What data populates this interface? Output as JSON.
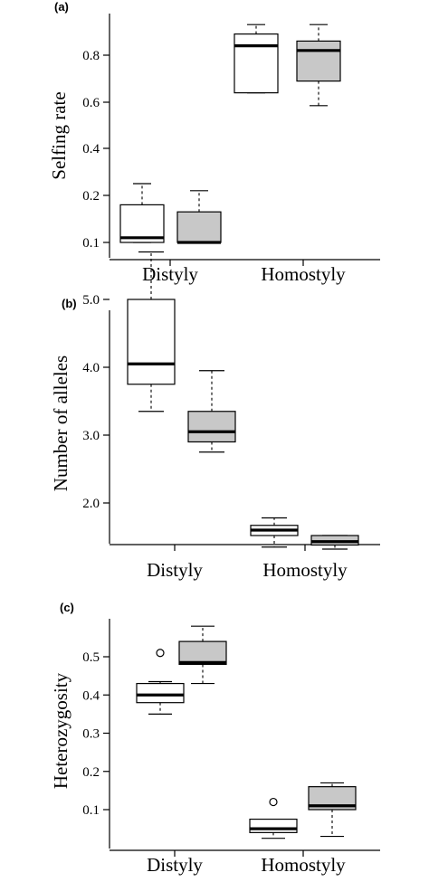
{
  "colors": {
    "white_box": "#ffffff",
    "grey_box": "#c8c8c8",
    "ink": "#000000"
  },
  "chart_data": [
    {
      "type": "box",
      "panel": "(a)",
      "ylabel": "Selfing rate",
      "categories": [
        "Distyly",
        "Homostyly"
      ],
      "yticks": [
        {
          "value": 0.1,
          "label": "0.1"
        },
        {
          "value": 0.2,
          "label": "0.2"
        },
        {
          "value": 0.4,
          "label": "0.4"
        },
        {
          "value": 0.6,
          "label": "0.6"
        },
        {
          "value": 0.8,
          "label": "0.8"
        }
      ],
      "boxes": [
        {
          "category": "Distyly",
          "fill": "white",
          "whisker_low": 0.1,
          "q1": 0.1,
          "median": 0.11,
          "q3": 0.18,
          "whisker_high": 0.25,
          "outliers": []
        },
        {
          "category": "Distyly",
          "fill": "grey",
          "whisker_low": 0.1,
          "q1": 0.1,
          "median": 0.1,
          "q3": 0.165,
          "whisker_high": 0.22,
          "outliers": []
        },
        {
          "category": "Homostyly",
          "fill": "white",
          "whisker_low": 0.64,
          "q1": 0.64,
          "median": 0.84,
          "q3": 0.89,
          "whisker_high": 0.93,
          "outliers": []
        },
        {
          "category": "Homostyly",
          "fill": "grey",
          "whisker_low": 0.585,
          "q1": 0.69,
          "median": 0.82,
          "q3": 0.86,
          "whisker_high": 0.93,
          "outliers": []
        }
      ]
    },
    {
      "type": "box",
      "panel": "(b)",
      "ylabel": "Number of alleles",
      "categories": [
        "Distyly",
        "Homostyly"
      ],
      "yticks": [
        {
          "value": 2.0,
          "label": "2.0"
        },
        {
          "value": 3.0,
          "label": "3.0"
        },
        {
          "value": 4.0,
          "label": "4.0"
        },
        {
          "value": 5.0,
          "label": "5.0"
        }
      ],
      "boxes": [
        {
          "category": "Distyly",
          "fill": "white",
          "whisker_low": 3.35,
          "q1": 3.75,
          "median": 4.05,
          "q3": 5.0,
          "whisker_high": 5.7,
          "outliers": []
        },
        {
          "category": "Distyly",
          "fill": "grey",
          "whisker_low": 2.75,
          "q1": 2.9,
          "median": 3.05,
          "q3": 3.35,
          "whisker_high": 3.95,
          "outliers": []
        },
        {
          "category": "Homostyly",
          "fill": "white",
          "whisker_low": 1.35,
          "q1": 1.52,
          "median": 1.6,
          "q3": 1.67,
          "whisker_high": 1.78,
          "outliers": []
        },
        {
          "category": "Homostyly",
          "fill": "grey",
          "whisker_low": 1.32,
          "q1": 1.38,
          "median": 1.43,
          "q3": 1.52,
          "whisker_high": 1.52,
          "outliers": []
        }
      ]
    },
    {
      "type": "box",
      "panel": "(c)",
      "ylabel": "Heterozygosity",
      "categories": [
        "Distyly",
        "Homostyly"
      ],
      "yticks": [
        {
          "value": 0.1,
          "label": "0.1"
        },
        {
          "value": 0.2,
          "label": "0.2"
        },
        {
          "value": 0.3,
          "label": "0.3"
        },
        {
          "value": 0.4,
          "label": "0.4"
        },
        {
          "value": 0.5,
          "label": "0.5"
        }
      ],
      "boxes": [
        {
          "category": "Distyly",
          "fill": "white",
          "whisker_low": 0.35,
          "q1": 0.38,
          "median": 0.4,
          "q3": 0.43,
          "whisker_high": 0.435,
          "outliers": [
            0.51
          ]
        },
        {
          "category": "Distyly",
          "fill": "grey",
          "whisker_low": 0.43,
          "q1": 0.48,
          "median": 0.485,
          "q3": 0.54,
          "whisker_high": 0.58,
          "outliers": []
        },
        {
          "category": "Homostyly",
          "fill": "white",
          "whisker_low": 0.025,
          "q1": 0.04,
          "median": 0.05,
          "q3": 0.075,
          "whisker_high": 0.075,
          "outliers": [
            0.12
          ]
        },
        {
          "category": "Homostyly",
          "fill": "grey",
          "whisker_low": 0.03,
          "q1": 0.1,
          "median": 0.11,
          "q3": 0.16,
          "whisker_high": 0.17,
          "outliers": []
        }
      ]
    }
  ]
}
